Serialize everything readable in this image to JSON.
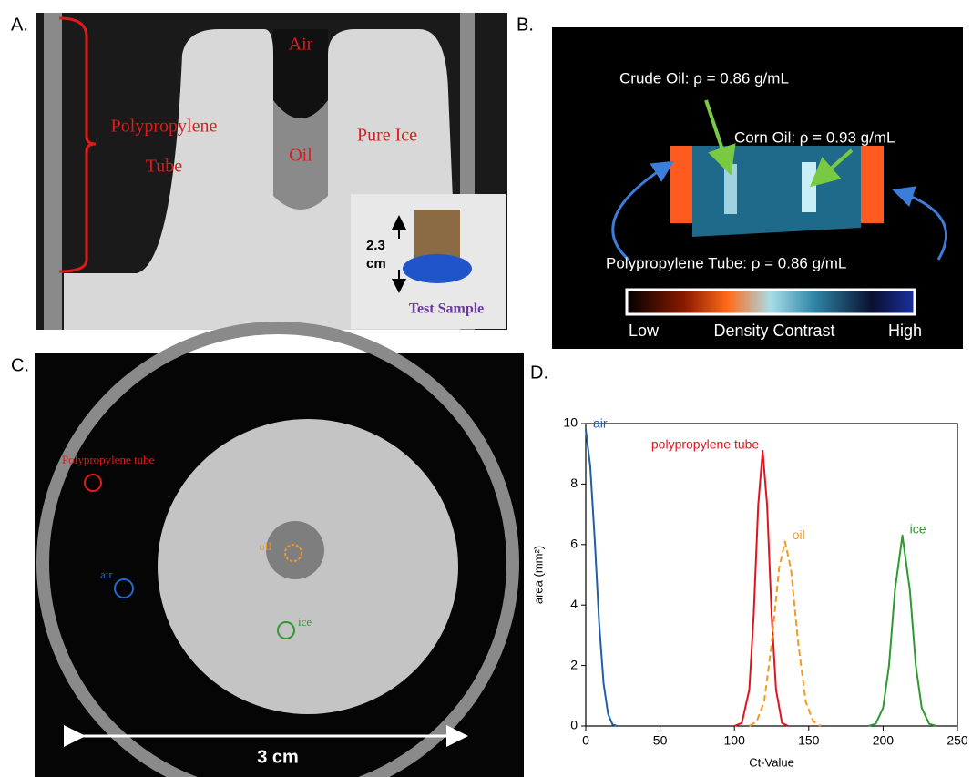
{
  "panels": {
    "a": {
      "label": "A.",
      "air": "Air",
      "oil": "Oil",
      "tube_lines": [
        "Polypropylene",
        "Tube"
      ],
      "ice": "Pure Ice",
      "height_lines": [
        "2.3",
        "cm"
      ],
      "sample": "Test Sample"
    },
    "b": {
      "label": "B.",
      "crude": "Crude Oil: ρ = 0.86 g/mL",
      "corn": "Corn Oil: ρ = 0.93 g/mL",
      "tube": "Polypropylene Tube: ρ = 0.86 g/mL",
      "low": "Low",
      "contrast": "Density Contrast",
      "high": "High"
    },
    "c": {
      "label": "C.",
      "tube": "Polypropylene tube",
      "oil": "oil",
      "air": "air",
      "ice": "ice",
      "scale": "3 cm"
    },
    "d": {
      "label": "D."
    }
  },
  "chart_data": {
    "type": "line",
    "x_label": "Ct-Value",
    "y_label": "area (mm²)",
    "xlim": [
      0,
      250
    ],
    "ylim": [
      0,
      10
    ],
    "xticks": [
      0,
      50,
      100,
      150,
      200,
      250
    ],
    "yticks": [
      0,
      2,
      4,
      6,
      8,
      10
    ],
    "series": [
      {
        "name": "air",
        "color": "#1f5fa8",
        "x": [
          0,
          3,
          6,
          9,
          12,
          15,
          18,
          21
        ],
        "values": [
          9.8,
          8.6,
          6.2,
          3.4,
          1.4,
          0.4,
          0.05,
          0
        ]
      },
      {
        "name": "polypropylene tube",
        "color": "#e0141e",
        "x": [
          100,
          105,
          110,
          113,
          116,
          119,
          122,
          125,
          128,
          132,
          136
        ],
        "values": [
          0,
          0.1,
          1.2,
          3.7,
          7.3,
          9.1,
          7.3,
          3.7,
          1.2,
          0.1,
          0
        ]
      },
      {
        "name": "oil",
        "color": "#f39a1e",
        "style": "dashed",
        "x": [
          110,
          115,
          120,
          125,
          130,
          134,
          138,
          143,
          148,
          153,
          158
        ],
        "values": [
          0,
          0.15,
          0.8,
          2.7,
          5.2,
          6.1,
          5.2,
          2.7,
          0.8,
          0.15,
          0
        ]
      },
      {
        "name": "ice",
        "color": "#2e9a2e",
        "x": [
          190,
          195,
          200,
          204,
          208,
          213,
          218,
          222,
          226,
          231,
          236
        ],
        "values": [
          0,
          0.07,
          0.6,
          2.0,
          4.5,
          6.3,
          4.5,
          2.0,
          0.6,
          0.07,
          0
        ]
      }
    ]
  }
}
